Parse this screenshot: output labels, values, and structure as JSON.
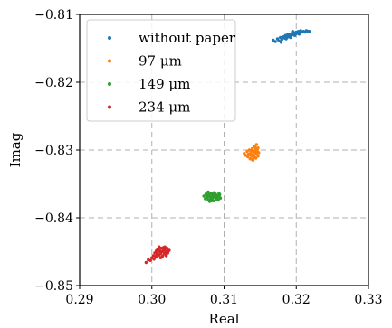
{
  "chart_data": {
    "type": "scatter",
    "xlabel": "Real",
    "ylabel": "Imag",
    "xlim": [
      0.29,
      0.33
    ],
    "ylim": [
      -0.85,
      -0.81
    ],
    "xticks": [
      0.29,
      0.3,
      0.31,
      0.32,
      0.33
    ],
    "xtick_labels": [
      "0.29",
      "0.30",
      "0.31",
      "0.32",
      "0.33"
    ],
    "yticks": [
      -0.85,
      -0.84,
      -0.83,
      -0.82,
      -0.81
    ],
    "ytick_labels": [
      "−0.85",
      "−0.84",
      "−0.83",
      "−0.82",
      "−0.81"
    ],
    "grid": true,
    "legend_position": "top-left",
    "series": [
      {
        "name": "without paper",
        "color": "#1f77b4",
        "points": [
          [
            0.3168,
            -0.8138
          ],
          [
            0.3171,
            -0.814
          ],
          [
            0.3174,
            -0.8136
          ],
          [
            0.3176,
            -0.8139
          ],
          [
            0.3178,
            -0.8134
          ],
          [
            0.318,
            -0.8137
          ],
          [
            0.3182,
            -0.8133
          ],
          [
            0.3184,
            -0.8135
          ],
          [
            0.3185,
            -0.8131
          ],
          [
            0.3187,
            -0.8134
          ],
          [
            0.3188,
            -0.813
          ],
          [
            0.319,
            -0.8133
          ],
          [
            0.3191,
            -0.8129
          ],
          [
            0.3193,
            -0.8131
          ],
          [
            0.3194,
            -0.8128
          ],
          [
            0.3196,
            -0.813
          ],
          [
            0.3197,
            -0.8127
          ],
          [
            0.3199,
            -0.8129
          ],
          [
            0.32,
            -0.8126
          ],
          [
            0.3202,
            -0.8128
          ],
          [
            0.3203,
            -0.8125
          ],
          [
            0.3205,
            -0.8127
          ],
          [
            0.3206,
            -0.8124
          ],
          [
            0.3208,
            -0.8126
          ],
          [
            0.321,
            -0.8125
          ],
          [
            0.3212,
            -0.8126
          ],
          [
            0.3214,
            -0.8124
          ],
          [
            0.3216,
            -0.8125
          ],
          [
            0.3218,
            -0.8125
          ],
          [
            0.3186,
            -0.8136
          ],
          [
            0.3192,
            -0.8134
          ],
          [
            0.3198,
            -0.8131
          ],
          [
            0.3204,
            -0.8129
          ],
          [
            0.3179,
            -0.8141
          ],
          [
            0.3195,
            -0.8125
          ]
        ]
      },
      {
        "name": "97 μm",
        "color": "#ff7f0e",
        "points": [
          [
            0.3128,
            -0.8305
          ],
          [
            0.313,
            -0.8308
          ],
          [
            0.3132,
            -0.8302
          ],
          [
            0.3133,
            -0.831
          ],
          [
            0.3134,
            -0.8306
          ],
          [
            0.3135,
            -0.83
          ],
          [
            0.3136,
            -0.8313
          ],
          [
            0.3137,
            -0.8304
          ],
          [
            0.3138,
            -0.8309
          ],
          [
            0.3139,
            -0.8298
          ],
          [
            0.314,
            -0.8307
          ],
          [
            0.314,
            -0.8315
          ],
          [
            0.3141,
            -0.8302
          ],
          [
            0.3142,
            -0.8295
          ],
          [
            0.3142,
            -0.831
          ],
          [
            0.3143,
            -0.8304
          ],
          [
            0.3144,
            -0.83
          ],
          [
            0.3144,
            -0.8312
          ],
          [
            0.3145,
            -0.8292
          ],
          [
            0.3145,
            -0.8306
          ],
          [
            0.3146,
            -0.8302
          ],
          [
            0.3147,
            -0.8309
          ],
          [
            0.3147,
            -0.8297
          ],
          [
            0.3148,
            -0.8304
          ],
          [
            0.3136,
            -0.8307
          ],
          [
            0.3138,
            -0.8301
          ],
          [
            0.3141,
            -0.8311
          ],
          [
            0.3143,
            -0.8296
          ],
          [
            0.3139,
            -0.8314
          ],
          [
            0.3146,
            -0.8299
          ]
        ]
      },
      {
        "name": "149 μm",
        "color": "#2ca02c",
        "points": [
          [
            0.3072,
            -0.8368
          ],
          [
            0.3074,
            -0.8372
          ],
          [
            0.3075,
            -0.8365
          ],
          [
            0.3077,
            -0.837
          ],
          [
            0.3078,
            -0.8374
          ],
          [
            0.3079,
            -0.8366
          ],
          [
            0.308,
            -0.8369
          ],
          [
            0.3081,
            -0.8373
          ],
          [
            0.3082,
            -0.8364
          ],
          [
            0.3083,
            -0.8368
          ],
          [
            0.3084,
            -0.8371
          ],
          [
            0.3085,
            -0.8366
          ],
          [
            0.3086,
            -0.8375
          ],
          [
            0.3087,
            -0.8369
          ],
          [
            0.3088,
            -0.8365
          ],
          [
            0.3089,
            -0.8372
          ],
          [
            0.309,
            -0.8367
          ],
          [
            0.3091,
            -0.837
          ],
          [
            0.3092,
            -0.8374
          ],
          [
            0.3093,
            -0.8368
          ],
          [
            0.3094,
            -0.8366
          ],
          [
            0.3095,
            -0.8371
          ],
          [
            0.3076,
            -0.8367
          ],
          [
            0.308,
            -0.8376
          ],
          [
            0.3086,
            -0.8363
          ],
          [
            0.309,
            -0.8373
          ],
          [
            0.3083,
            -0.8375
          ],
          [
            0.3078,
            -0.8362
          ],
          [
            0.3088,
            -0.837
          ],
          [
            0.3093,
            -0.8364
          ]
        ]
      },
      {
        "name": "234 μm",
        "color": "#d62728",
        "points": [
          [
            0.2992,
            -0.8466
          ],
          [
            0.2995,
            -0.8462
          ],
          [
            0.2998,
            -0.8463
          ],
          [
            0.3,
            -0.8459
          ],
          [
            0.3002,
            -0.8456
          ],
          [
            0.3004,
            -0.8452
          ],
          [
            0.3005,
            -0.8457
          ],
          [
            0.3006,
            -0.8449
          ],
          [
            0.3007,
            -0.8454
          ],
          [
            0.3008,
            -0.8451
          ],
          [
            0.3009,
            -0.8446
          ],
          [
            0.301,
            -0.8455
          ],
          [
            0.3011,
            -0.8449
          ],
          [
            0.3012,
            -0.8453
          ],
          [
            0.3013,
            -0.8445
          ],
          [
            0.3014,
            -0.845
          ],
          [
            0.3015,
            -0.8456
          ],
          [
            0.3016,
            -0.8448
          ],
          [
            0.3017,
            -0.8452
          ],
          [
            0.3018,
            -0.8447
          ],
          [
            0.3019,
            -0.8454
          ],
          [
            0.302,
            -0.845
          ],
          [
            0.3021,
            -0.8445
          ],
          [
            0.3022,
            -0.8452
          ],
          [
            0.3023,
            -0.8449
          ],
          [
            0.3006,
            -0.8458
          ],
          [
            0.301,
            -0.8443
          ],
          [
            0.3014,
            -0.8458
          ],
          [
            0.3018,
            -0.8443
          ],
          [
            0.3008,
            -0.8446
          ],
          [
            0.3012,
            -0.8459
          ],
          [
            0.3016,
            -0.8444
          ],
          [
            0.302,
            -0.8456
          ],
          [
            0.3003,
            -0.8461
          ],
          [
            0.3024,
            -0.8448
          ]
        ]
      }
    ]
  }
}
